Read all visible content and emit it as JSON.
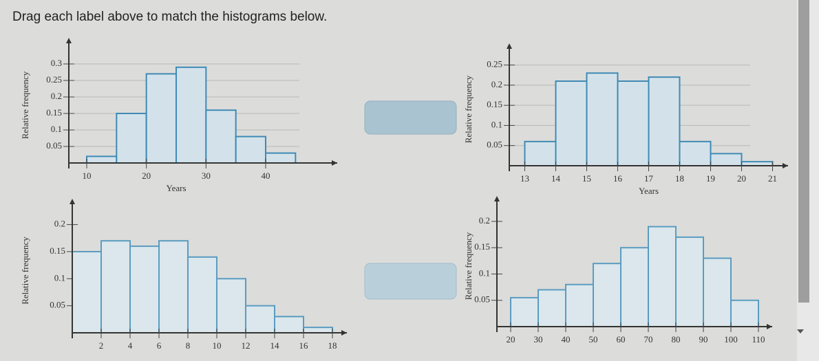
{
  "instruction": "Drag each label above to match the histograms below.",
  "chart_data": [
    {
      "type": "histogram",
      "xlabel": "Years",
      "ylabel": "Relative frequency",
      "bins": [
        10,
        15,
        20,
        25,
        30,
        35,
        40,
        45
      ],
      "values": [
        0.02,
        0.15,
        0.27,
        0.29,
        0.16,
        0.08,
        0.03
      ],
      "xlim": [
        7,
        52
      ],
      "ylim": [
        0,
        0.35
      ],
      "xticks": [
        10,
        20,
        30,
        40
      ],
      "yticks": [
        0.05,
        0.1,
        0.15,
        0.2,
        0.25,
        0.3
      ],
      "color": "#d3e2ea",
      "edgecolor": "#3f8ab5",
      "grid": true
    },
    {
      "type": "histogram",
      "xlabel": "Years",
      "ylabel": "Relative frequency",
      "bins": [
        13,
        14,
        15,
        16,
        17,
        18,
        19,
        20,
        21
      ],
      "values": [
        0.06,
        0.21,
        0.23,
        0.21,
        0.22,
        0.06,
        0.03,
        0.01
      ],
      "xlim": [
        12.5,
        21.5
      ],
      "ylim": [
        0,
        0.28
      ],
      "xticks": [
        13,
        14,
        15,
        16,
        17,
        18,
        19,
        20,
        21
      ],
      "yticks": [
        0.05,
        0.1,
        0.15,
        0.2,
        0.25
      ],
      "color": "#d3e2ea",
      "edgecolor": "#3f8ab5",
      "grid": true
    },
    {
      "type": "histogram",
      "ylabel": "Relative frequency",
      "bins": [
        0,
        2,
        4,
        6,
        8,
        10,
        12,
        14,
        16,
        18
      ],
      "values": [
        0.15,
        0.17,
        0.16,
        0.17,
        0.14,
        0.1,
        0.05,
        0.03,
        0.01
      ],
      "xlim": [
        0,
        19
      ],
      "ylim": [
        0,
        0.23
      ],
      "xticks": [
        2,
        4,
        6,
        8,
        10,
        12,
        14,
        16,
        18
      ],
      "yticks": [
        0.05,
        0.1,
        0.15,
        0.2
      ],
      "color": "#dbe7ec",
      "edgecolor": "#5a9cc0",
      "grid": false
    },
    {
      "type": "histogram",
      "ylabel": "Relative frequency",
      "bins": [
        20,
        30,
        40,
        50,
        60,
        70,
        80,
        90,
        100,
        110
      ],
      "values": [
        0.055,
        0.07,
        0.08,
        0.12,
        0.15,
        0.19,
        0.17,
        0.13,
        0.05
      ],
      "xlim": [
        15,
        115
      ],
      "ylim": [
        0,
        0.23
      ],
      "xticks": [
        20,
        30,
        40,
        50,
        60,
        70,
        80,
        90,
        100,
        110
      ],
      "yticks": [
        0.05,
        0.1,
        0.15,
        0.2
      ],
      "color": "#dbe7ec",
      "edgecolor": "#5a9cc0",
      "grid": false
    }
  ]
}
